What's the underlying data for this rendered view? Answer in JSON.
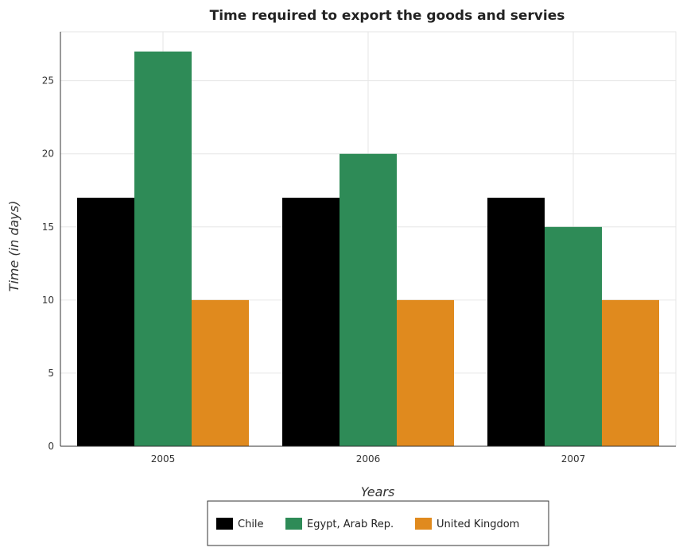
{
  "chart_data": {
    "type": "bar",
    "title": "Time required to export the goods and servies",
    "xlabel": "Years",
    "ylabel": "Time (in days)",
    "categories": [
      "2005",
      "2006",
      "2007"
    ],
    "series": [
      {
        "name": "Chile",
        "values": [
          17,
          17,
          17
        ],
        "color": "#000000"
      },
      {
        "name": "Egypt, Arab Rep.",
        "values": [
          27,
          20,
          15
        ],
        "color": "#2e8b57"
      },
      {
        "name": "United Kingdom",
        "values": [
          10,
          10,
          10
        ],
        "color": "#e08a1e"
      }
    ],
    "ylim": [
      0,
      28.35
    ],
    "yticks": [
      0,
      5,
      10,
      15,
      20,
      25
    ],
    "grid": true,
    "legend_position": "bottom"
  }
}
